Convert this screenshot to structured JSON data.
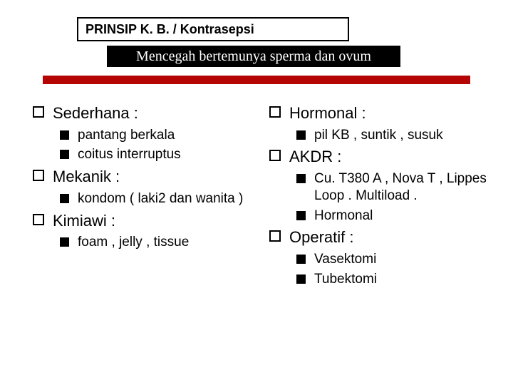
{
  "colors": {
    "black": "#000000",
    "white": "#ffffff",
    "red": "#b40404",
    "title_border": "#000000"
  },
  "title_box": {
    "text": "PRINSIP K. B. / Kontrasepsi",
    "bg": "#ffffff",
    "border_color": "#000000",
    "text_color": "#000000"
  },
  "subtitle_box": {
    "text": "Mencegah bertemunya sperma dan ovum",
    "bg": "#000000",
    "text_color": "#ffffff"
  },
  "red_bar_color": "#b40404",
  "left_column": [
    {
      "level": 1,
      "text": "Sederhana :"
    },
    {
      "level": 2,
      "text": "pantang berkala"
    },
    {
      "level": 2,
      "text": "coitus interruptus"
    },
    {
      "level": 1,
      "text": "Mekanik :"
    },
    {
      "level": 2,
      "text": "kondom ( laki2 dan wanita )"
    },
    {
      "level": 1,
      "text": "Kimiawi :"
    },
    {
      "level": 2,
      "text": "foam , jelly , tissue"
    }
  ],
  "right_column": [
    {
      "level": 1,
      "text": "Hormonal :"
    },
    {
      "level": 2,
      "text": "pil KB , suntik , susuk"
    },
    {
      "level": 1,
      "text": "AKDR :"
    },
    {
      "level": 2,
      "text": "Cu. T380 A , Nova T , Lippes Loop . Multiload . "
    },
    {
      "level": 2,
      "text": "Hormonal"
    },
    {
      "level": 1,
      "text": "Operatif :"
    },
    {
      "level": 2,
      "text": "Vasektomi"
    },
    {
      "level": 2,
      "text": "Tubektomi"
    }
  ]
}
